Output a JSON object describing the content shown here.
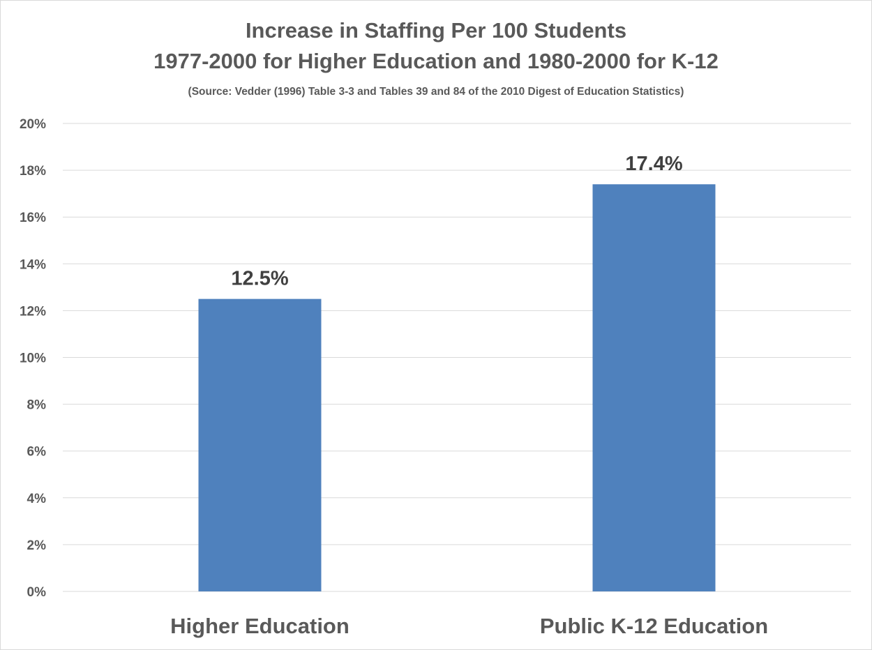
{
  "chart_data": {
    "type": "bar",
    "title": "Increase in Staffing Per 100 Students",
    "title_line2": "1977-2000 for Higher Education and 1980-2000 for K-12",
    "subtitle": "(Source: Vedder (1996) Table 3-3 and Tables 39 and 84 of the 2010 Digest of Education Statistics)",
    "categories": [
      "Higher Education",
      "Public K-12 Education"
    ],
    "values": [
      12.5,
      17.4
    ],
    "data_labels": [
      "12.5%",
      "17.4%"
    ],
    "xlabel": "",
    "ylabel": "",
    "ylim": [
      0,
      20
    ],
    "yticks": [
      0,
      2,
      4,
      6,
      8,
      10,
      12,
      14,
      16,
      18,
      20
    ],
    "ytick_labels": [
      "0%",
      "2%",
      "4%",
      "6%",
      "8%",
      "10%",
      "12%",
      "14%",
      "16%",
      "18%",
      "20%"
    ],
    "grid": true,
    "legend": "none",
    "colors": {
      "bar": "#4f81bd",
      "grid": "#d9d9d9",
      "text": "#595959",
      "data_label": "#404040"
    }
  }
}
